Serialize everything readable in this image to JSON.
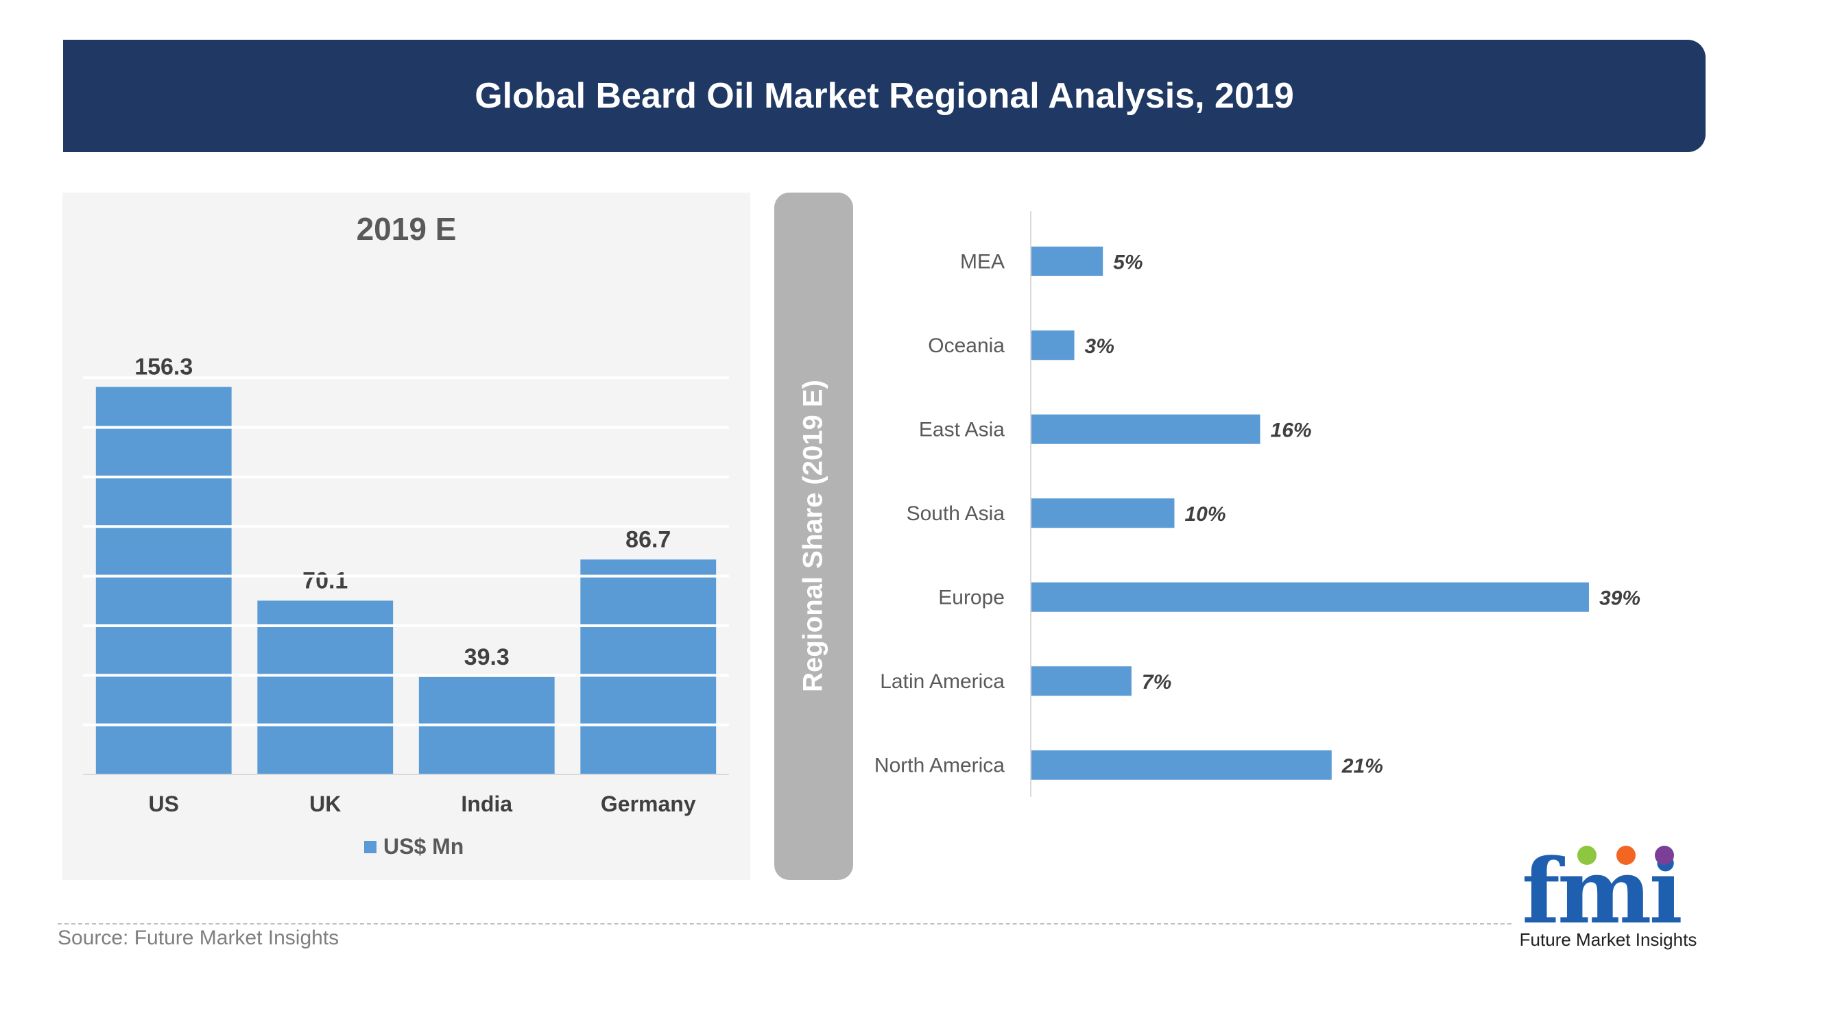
{
  "header": {
    "title": "Global Beard Oil Market Regional Analysis, 2019"
  },
  "left_panel": {
    "title": "2019 E",
    "legend": "US$ Mn"
  },
  "divider": {
    "label": "Regional Share (2019 E)"
  },
  "footer": {
    "source": "Source: Future Market Insights"
  },
  "logo": {
    "text": "Future Market Insights",
    "mark": "fmi"
  },
  "colors": {
    "banner": "#1f3864",
    "bar": "#5b9bd5",
    "divider": "#b3b3b3",
    "logo_blue": "#1f5fb0"
  },
  "chart_data": [
    {
      "type": "bar",
      "title": "2019 E",
      "categories": [
        "US",
        "UK",
        "India",
        "Germany"
      ],
      "series": [
        {
          "name": "US$ Mn",
          "values": [
            156.3,
            70.1,
            39.3,
            86.7
          ]
        }
      ],
      "value_labels": [
        "156.3",
        "70.1",
        "39.3",
        "86.7"
      ],
      "ylim": [
        0,
        175
      ],
      "grid": true,
      "legend": "bottom"
    },
    {
      "type": "bar",
      "orientation": "horizontal",
      "ylabel": "Regional Share (2019 E)",
      "categories": [
        "MEA",
        "Oceania",
        "East Asia",
        "South Asia",
        "Europe",
        "Latin America",
        "North America"
      ],
      "values": [
        5,
        3,
        16,
        10,
        39,
        7,
        21
      ],
      "value_labels": [
        "5%",
        "3%",
        "16%",
        "10%",
        "39%",
        "7%",
        "21%"
      ],
      "xlim": [
        0,
        39
      ],
      "grid": false
    }
  ]
}
